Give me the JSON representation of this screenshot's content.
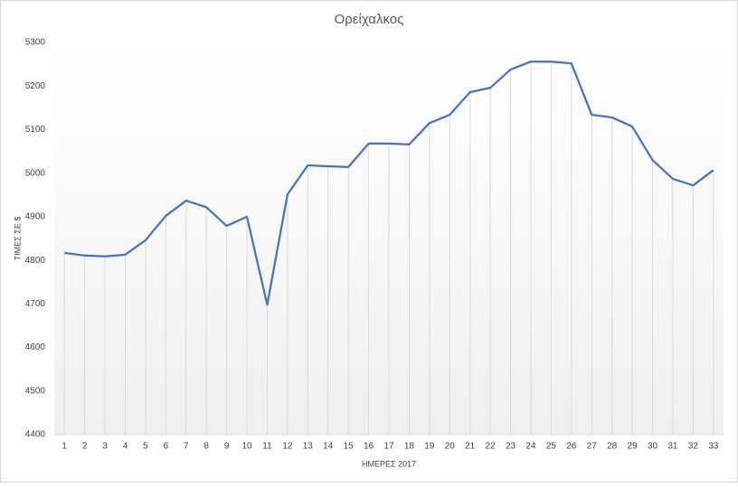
{
  "chart_data": {
    "type": "line",
    "title": "Ορείχαλκος",
    "x_label": "ΗΜΕΡΕΣ 2017",
    "y_label": "ΤΙΜΕΣ ΣΕ $",
    "categories": [
      "1",
      "2",
      "3",
      "4",
      "5",
      "6",
      "7",
      "8",
      "9",
      "10",
      "11",
      "12",
      "13",
      "14",
      "15",
      "16",
      "17",
      "18",
      "19",
      "20",
      "21",
      "22",
      "23",
      "24",
      "25",
      "26",
      "27",
      "28",
      "29",
      "30",
      "31",
      "32",
      "33"
    ],
    "series": [
      {
        "name": "Ορείχαλκος",
        "color": "#4472c4",
        "values": [
          4817,
          4811,
          4809,
          4813,
          4846,
          4902,
          4937,
          4922,
          4879,
          4900,
          4698,
          4951,
          5018,
          5016,
          5014,
          5068,
          5068,
          5066,
          5115,
          5134,
          5186,
          5196,
          5238,
          5256,
          5256,
          5252,
          5134,
          5128,
          5107,
          5030,
          4987,
          4972,
          5007
        ]
      }
    ],
    "ylim": [
      4400,
      5300
    ],
    "yticks": [
      4400,
      4500,
      4600,
      4700,
      4800,
      4900,
      5000,
      5100,
      5200,
      5300
    ],
    "drop_lines": true
  }
}
